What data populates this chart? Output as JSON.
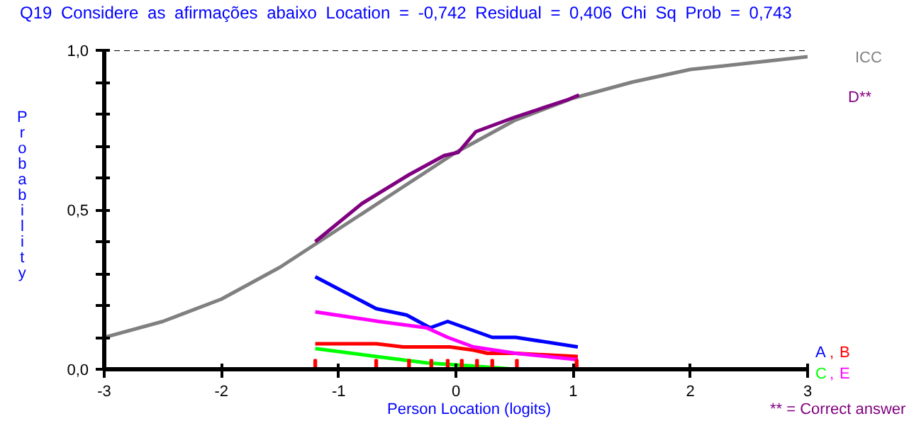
{
  "chart_data": {
    "type": "line",
    "title": "Q19    Considere as afirmações abaixo    Location = -0,742    Residual = 0,406    Chi Sq Prob = 0,743",
    "xlabel": "Person Location (logits)",
    "ylabel": "Probability",
    "xlim": [
      -3,
      3
    ],
    "ylim": [
      0,
      1
    ],
    "xticks": [
      -3,
      -2,
      -1,
      0,
      1,
      2,
      3
    ],
    "yticks": [
      {
        "value": 0,
        "label": "0,0"
      },
      {
        "value": 0.1,
        "label": null
      },
      {
        "value": 0.2,
        "label": null
      },
      {
        "value": 0.3,
        "label": null
      },
      {
        "value": 0.4,
        "label": null
      },
      {
        "value": 0.5,
        "label": "0,5"
      },
      {
        "value": 0.6,
        "label": null
      },
      {
        "value": 0.7,
        "label": null
      },
      {
        "value": 0.8,
        "label": null
      },
      {
        "value": 0.9,
        "label": null
      },
      {
        "value": 1,
        "label": "1,0"
      }
    ],
    "grid": false,
    "marker": "none",
    "line_style": "solid",
    "ref_lines": [
      {
        "axis": "y",
        "value": 1,
        "color": "#000000",
        "line_style": "dashed"
      }
    ],
    "series": [
      {
        "name": "ICC",
        "color": "#808080",
        "x": [
          -3,
          -2.5,
          -2,
          -1.5,
          -1,
          -0.5,
          0,
          0.5,
          1,
          1.5,
          2,
          2.5,
          3
        ],
        "values": [
          0.1,
          0.15,
          0.22,
          0.32,
          0.44,
          0.56,
          0.68,
          0.78,
          0.85,
          0.9,
          0.94,
          0.96,
          0.98
        ]
      },
      {
        "name": "D**",
        "color": "#800080",
        "x": [
          -1.2,
          -0.8,
          -0.4,
          -0.1,
          0.02,
          0.17,
          0.5,
          0.96,
          1.05
        ],
        "values": [
          0.4,
          0.52,
          0.61,
          0.67,
          0.68,
          0.745,
          0.79,
          0.846,
          0.86
        ]
      },
      {
        "name": "A",
        "color": "#0000ff",
        "x": [
          -1.2,
          -0.68,
          -0.42,
          -0.22,
          -0.07,
          0.31,
          0.51,
          1.04
        ],
        "values": [
          0.29,
          0.19,
          0.17,
          0.13,
          0.15,
          0.1,
          0.1,
          0.07
        ]
      },
      {
        "name": "B",
        "color": "#ff0000",
        "x": [
          -1.2,
          -0.68,
          -0.45,
          -0.05,
          0.15,
          0.27,
          0.51,
          1.04
        ],
        "values": [
          0.08,
          0.08,
          0.07,
          0.07,
          0.06,
          0.05,
          0.05,
          0.04
        ]
      },
      {
        "name": "C",
        "color": "#00ff00",
        "x": [
          -1.2,
          -0.68,
          -0.25,
          0.15,
          0.51,
          1.04
        ],
        "values": [
          0.065,
          0.04,
          0.02,
          0.01,
          0.0,
          0.0
        ]
      },
      {
        "name": "E",
        "color": "#ff00ff",
        "x": [
          -1.2,
          -0.66,
          -0.25,
          -0.07,
          0.15,
          0.51,
          1.04
        ],
        "values": [
          0.18,
          0.15,
          0.13,
          0.1,
          0.07,
          0.05,
          0.03
        ]
      },
      {
        "type": "bar",
        "color": "#ff0000",
        "x": [
          -1.2,
          -0.68,
          -0.4,
          -0.21,
          -0.07,
          0.05,
          0.18,
          0.31,
          0.52,
          1.03
        ],
        "values": [
          0.03,
          0.03,
          0.03,
          0.03,
          0.03,
          0.03,
          0.03,
          0.03,
          0.03,
          0.03
        ]
      }
    ],
    "annotations": [
      ",",
      ",",
      "** = Correct answer"
    ]
  }
}
